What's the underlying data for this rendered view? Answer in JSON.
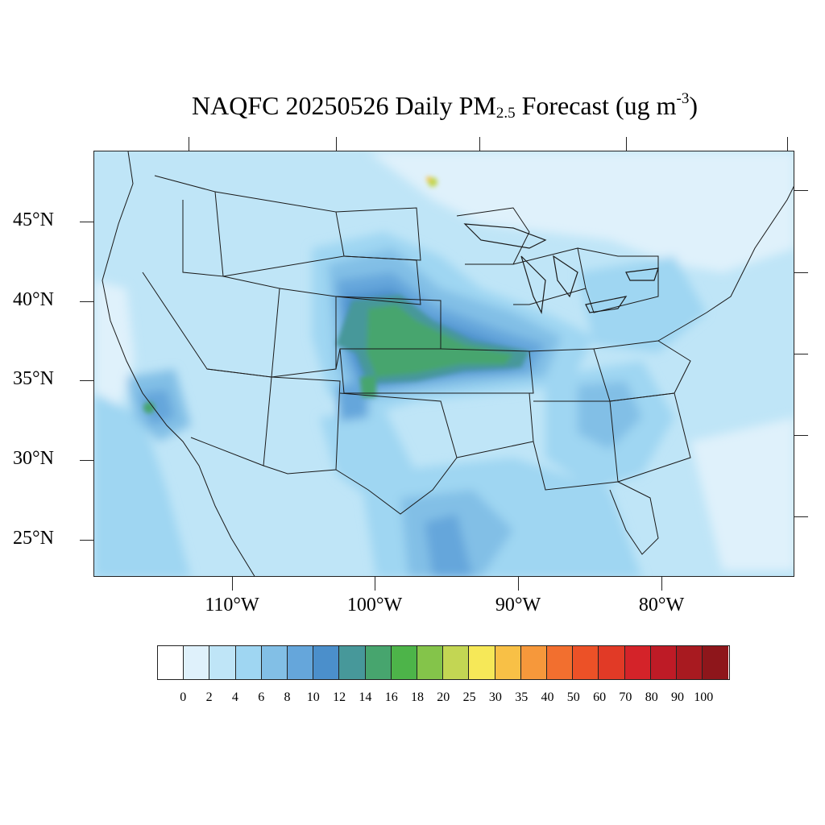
{
  "title": {
    "prefix": "NAQFC 20250526 Daily PM",
    "subscript": "2.5",
    "middle": " Forecast (ug m",
    "superscript": "-3",
    "suffix": ")"
  },
  "axes": {
    "lat_labels": [
      "45°N",
      "40°N",
      "35°N",
      "30°N",
      "25°N"
    ],
    "lon_labels": [
      "110°W",
      "100°W",
      "90°W",
      "80°W"
    ]
  },
  "colorbar": {
    "levels": [
      "0",
      "2",
      "4",
      "6",
      "8",
      "10",
      "12",
      "14",
      "16",
      "18",
      "20",
      "25",
      "30",
      "35",
      "40",
      "50",
      "60",
      "70",
      "80",
      "90",
      "100"
    ],
    "colors": [
      "#ffffff",
      "#dff1fb",
      "#bfe5f7",
      "#9fd6f2",
      "#82bfe6",
      "#65a6db",
      "#4b8fcb",
      "#47989a",
      "#47a56e",
      "#4db449",
      "#84c44a",
      "#c3d653",
      "#f6e858",
      "#f8c046",
      "#f6983b",
      "#f26f2f",
      "#ec5127",
      "#e13a26",
      "#d42329",
      "#be1b26",
      "#a81a20",
      "#8e161b"
    ]
  }
}
